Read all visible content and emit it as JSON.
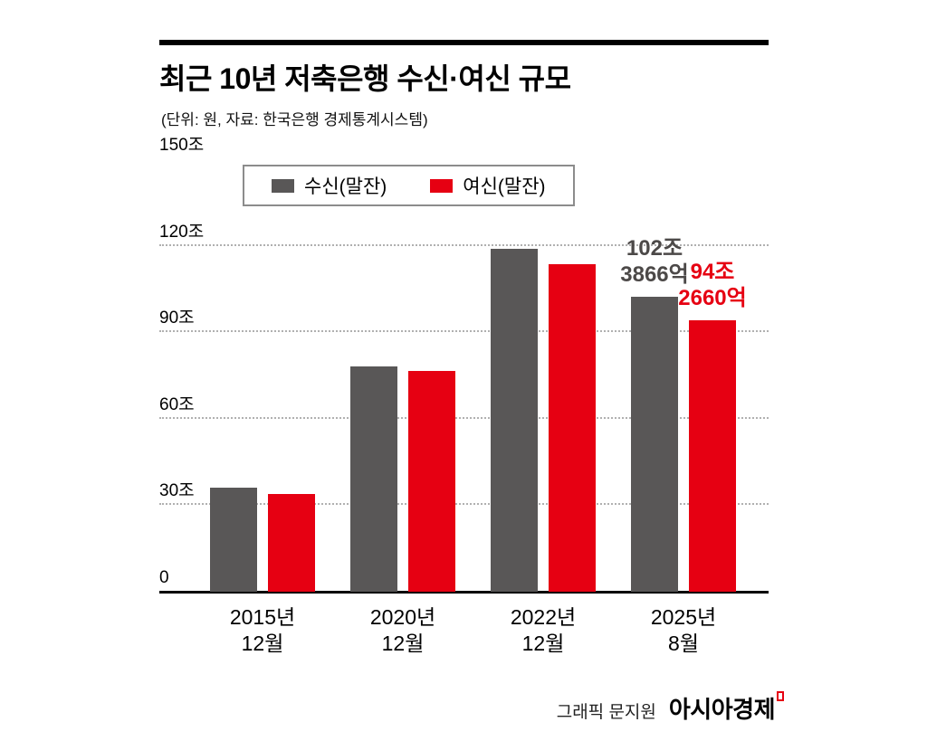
{
  "header": {
    "title": "최근 10년 저축은행 수신·여신 규모",
    "subtitle": "(단위: 원, 자료: 한국은행 경제통계시스템)"
  },
  "chart_data": {
    "type": "bar",
    "title": "최근 10년 저축은행 수신·여신 규모",
    "unit": "조 원",
    "categories": [
      [
        "2015년",
        "12월"
      ],
      [
        "2020년",
        "12월"
      ],
      [
        "2022년",
        "12월"
      ],
      [
        "2025년",
        "8월"
      ]
    ],
    "series": [
      {
        "name": "수신(말잔)",
        "color": "#595757",
        "values": [
          36,
          78,
          119,
          102.3866
        ]
      },
      {
        "name": "여신(말잔)",
        "color": "#e60012",
        "values": [
          34,
          76.5,
          113.5,
          94.266
        ]
      }
    ],
    "ylim": [
      0,
      150
    ],
    "yticks": [
      0,
      30,
      60,
      90,
      120,
      150
    ],
    "ytick_labels": [
      "0",
      "30조",
      "60조",
      "90조",
      "120조",
      "150조"
    ],
    "grid": "horizontal dotted",
    "legend_position": "top",
    "annotations": [
      {
        "series": "수신(말잔)",
        "series_index": 0,
        "category_index": 3,
        "lines": [
          "102조",
          "3866억"
        ],
        "color": "#4c4948"
      },
      {
        "series": "여신(말잔)",
        "series_index": 1,
        "category_index": 3,
        "lines": [
          "94조",
          "2660억"
        ],
        "color": "#e60012"
      }
    ]
  },
  "footer": {
    "credit": "그래픽 문지원",
    "brand": "아시아경제"
  }
}
